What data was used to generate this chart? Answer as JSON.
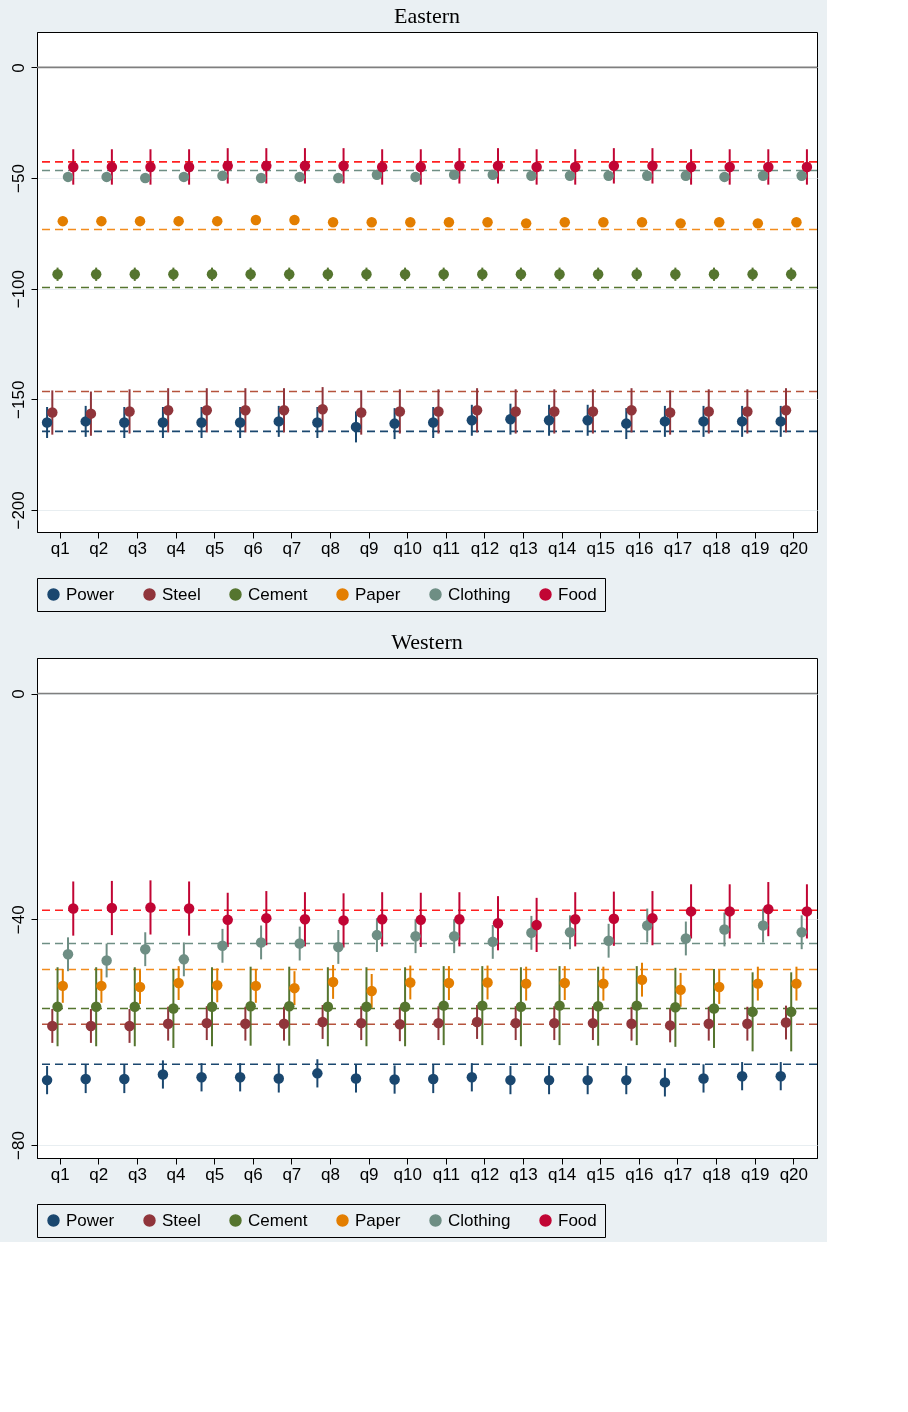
{
  "chart_data": [
    {
      "type": "scatter",
      "title": "Eastern",
      "categories": [
        "q1",
        "q2",
        "q3",
        "q4",
        "q5",
        "q6",
        "q7",
        "q8",
        "q9",
        "q10",
        "q11",
        "q12",
        "q13",
        "q14",
        "q15",
        "q16",
        "q17",
        "q18",
        "q19",
        "q20"
      ],
      "ylim": [
        -210,
        16
      ],
      "yticks": [
        0,
        -50,
        -100,
        -150,
        -200
      ],
      "grid": "y",
      "legend": "bottom",
      "marker": "circle",
      "series": [
        {
          "name": "Power",
          "color": "#1a476f",
          "values": [
            -160.5,
            -160,
            -160.5,
            -160.5,
            -160.5,
            -160.5,
            -160,
            -160.5,
            -162.5,
            -161,
            -160.5,
            -159.5,
            -159,
            -159.5,
            -159.5,
            -161,
            -160,
            -160,
            -160,
            -160
          ],
          "errors": [
            7,
            7,
            7,
            7,
            7,
            7,
            7,
            7,
            7,
            7,
            7,
            7,
            7,
            7,
            7,
            7,
            7,
            7,
            7,
            7
          ]
        },
        {
          "name": "Steel",
          "color": "#90353b",
          "values": [
            -156,
            -156.5,
            -155.5,
            -155,
            -155,
            -155,
            -155,
            -154.5,
            -156,
            -155.5,
            -155.5,
            -155,
            -155.5,
            -155.5,
            -155.5,
            -155,
            -156,
            -155.5,
            -155.5,
            -155
          ],
          "errors": [
            10,
            10,
            10,
            10,
            10,
            10,
            10,
            10,
            10,
            10,
            10,
            10,
            10,
            10,
            10,
            10,
            10,
            10,
            10,
            10
          ]
        },
        {
          "name": "Cement",
          "color": "#55752f",
          "values": [
            -93.5,
            -93.5,
            -93.5,
            -93.5,
            -93.5,
            -93.5,
            -93.5,
            -93.5,
            -93.5,
            -93.5,
            -93.5,
            -93.5,
            -93.5,
            -93.5,
            -93.5,
            -93.5,
            -93.5,
            -93.5,
            -93.5,
            -93.5
          ],
          "errors": [
            3,
            3,
            3,
            3,
            3,
            3,
            3,
            3,
            3,
            3,
            3,
            3,
            3,
            3,
            3,
            3,
            3,
            3,
            3,
            3
          ]
        },
        {
          "name": "Paper",
          "color": "#e37e00",
          "values": [
            -69.5,
            -69.5,
            -69.5,
            -69.5,
            -69.5,
            -69,
            -69,
            -70,
            -70,
            -70,
            -70,
            -70,
            -70.5,
            -70,
            -70,
            -70,
            -70.5,
            -70,
            -70.5,
            -70
          ],
          "errors": [
            2,
            2,
            2,
            2,
            2,
            2,
            2,
            2,
            2,
            2,
            2,
            2,
            2,
            2,
            2,
            2,
            2,
            2,
            2,
            2
          ]
        },
        {
          "name": "Clothing",
          "color": "#6e8e84",
          "values": [
            -49.5,
            -49.5,
            -50,
            -49.5,
            -49,
            -50,
            -49.5,
            -50,
            -48.5,
            -49.5,
            -48.5,
            -48.5,
            -49,
            -49,
            -49,
            -49,
            -49,
            -49.5,
            -49,
            -49
          ],
          "errors": [
            2,
            2,
            2,
            2,
            2,
            2,
            2,
            2,
            2,
            2,
            2,
            2,
            2,
            2,
            2,
            2,
            2,
            2,
            2,
            2
          ]
        },
        {
          "name": "Food",
          "color": "#c10534",
          "values": [
            -45,
            -45,
            -45,
            -45,
            -44.5,
            -44.5,
            -44.5,
            -44.5,
            -45,
            -45,
            -44.5,
            -44.5,
            -45,
            -45,
            -44.5,
            -44.5,
            -45,
            -45,
            -45,
            -45
          ],
          "errors": [
            8,
            8,
            8,
            8,
            8,
            8,
            8,
            8,
            8,
            8,
            8,
            8,
            8,
            8,
            8,
            8,
            8,
            8,
            8,
            8
          ]
        }
      ],
      "ref_lines": [
        {
          "axis": "y",
          "value": 0,
          "color": "#7f7f7f",
          "line_style": "solid"
        },
        {
          "axis": "y",
          "value": -42.7,
          "color": "#ff2020",
          "line_style": "dashed"
        },
        {
          "axis": "y",
          "value": -46.6,
          "color": "#6e8e84",
          "line_style": "dashed"
        },
        {
          "axis": "y",
          "value": -73.3,
          "color": "#f28c1e",
          "line_style": "dashed"
        },
        {
          "axis": "y",
          "value": -99.5,
          "color": "#55752f",
          "line_style": "dashed"
        },
        {
          "axis": "y",
          "value": -146.5,
          "color": "#b5533c",
          "line_style": "dashed"
        },
        {
          "axis": "y",
          "value": -164.5,
          "color": "#1a476f",
          "line_style": "dashed"
        }
      ]
    },
    {
      "type": "scatter",
      "title": "Western",
      "categories": [
        "q1",
        "q2",
        "q3",
        "q4",
        "q5",
        "q6",
        "q7",
        "q8",
        "q9",
        "q10",
        "q11",
        "q12",
        "q13",
        "q14",
        "q15",
        "q16",
        "q17",
        "q18",
        "q19",
        "q20"
      ],
      "ylim": [
        -82.3,
        6.3
      ],
      "yticks": [
        0,
        -40,
        -80
      ],
      "grid": "y",
      "legend": "bottom",
      "marker": "circle",
      "series": [
        {
          "name": "Power",
          "color": "#1a476f",
          "values": [
            -68.5,
            -68.3,
            -68.3,
            -67.5,
            -68,
            -68,
            -68.2,
            -67.3,
            -68.2,
            -68.4,
            -68.3,
            -68,
            -68.5,
            -68.5,
            -68.5,
            -68.5,
            -68.9,
            -68.2,
            -67.8,
            -67.8
          ],
          "errors": [
            2.5,
            2.5,
            2.5,
            2.5,
            2.5,
            2.5,
            2.5,
            2.5,
            2.5,
            2.5,
            2.5,
            2.5,
            2.5,
            2.5,
            2.5,
            2.5,
            2.5,
            2.5,
            2.5,
            2.5
          ]
        },
        {
          "name": "Steel",
          "color": "#90353b",
          "values": [
            -58.9,
            -58.9,
            -58.9,
            -58.5,
            -58.4,
            -58.5,
            -58.5,
            -58.2,
            -58.4,
            -58.6,
            -58.4,
            -58.2,
            -58.4,
            -58.4,
            -58.4,
            -58.5,
            -58.8,
            -58.5,
            -58.5,
            -58.3
          ],
          "errors": [
            3,
            3,
            3,
            3,
            3,
            3,
            3,
            3,
            3,
            3,
            3,
            3,
            3,
            3,
            3,
            3,
            3,
            3,
            3,
            3
          ]
        },
        {
          "name": "Cement",
          "color": "#55752f",
          "values": [
            -55.5,
            -55.5,
            -55.5,
            -55.8,
            -55.5,
            -55.4,
            -55.4,
            -55.5,
            -55.5,
            -55.5,
            -55.3,
            -55.3,
            -55.5,
            -55.3,
            -55.4,
            -55.3,
            -55.6,
            -55.8,
            -56.4,
            -56.4
          ],
          "errors": [
            7,
            7,
            7,
            7,
            7,
            7,
            7,
            7,
            7,
            7,
            7,
            7,
            7,
            7,
            7,
            7,
            7,
            7,
            7,
            7
          ]
        },
        {
          "name": "Paper",
          "color": "#e37e00",
          "values": [
            -51.8,
            -51.8,
            -52,
            -51.3,
            -51.7,
            -51.8,
            -52.2,
            -51.1,
            -52.7,
            -51.2,
            -51.3,
            -51.2,
            -51.4,
            -51.3,
            -51.4,
            -50.7,
            -52.5,
            -52,
            -51.4,
            -51.4
          ],
          "errors": [
            3,
            3,
            3,
            3,
            3,
            3,
            3,
            3,
            3,
            3,
            3,
            3,
            3,
            3,
            3,
            3,
            3,
            3,
            3,
            3
          ]
        },
        {
          "name": "Clothing",
          "color": "#6e8e84",
          "values": [
            -46.2,
            -47.3,
            -45.3,
            -47.1,
            -44.7,
            -44.1,
            -44.3,
            -44.9,
            -42.8,
            -43,
            -43,
            -44,
            -42.4,
            -42.3,
            -43.8,
            -41.1,
            -43.4,
            -41.8,
            -41.1,
            -42.3
          ],
          "errors": [
            3,
            3,
            3,
            3,
            3,
            3,
            3,
            3,
            3,
            3,
            3,
            3,
            3,
            3,
            3,
            3,
            3,
            3,
            3,
            3
          ]
        },
        {
          "name": "Food",
          "color": "#c10534",
          "values": [
            -38.1,
            -38,
            -37.9,
            -38.1,
            -40.1,
            -39.8,
            -40,
            -40.2,
            -40,
            -40.1,
            -40,
            -40.7,
            -41,
            -40,
            -39.9,
            -39.8,
            -38.6,
            -38.6,
            -38.2,
            -38.6
          ],
          "errors": [
            4.8,
            4.8,
            4.8,
            4.8,
            4.8,
            4.8,
            4.8,
            4.8,
            4.8,
            4.8,
            4.8,
            4.8,
            4.8,
            4.8,
            4.8,
            4.8,
            4.8,
            4.8,
            4.8,
            4.8
          ]
        }
      ],
      "ref_lines": [
        {
          "axis": "y",
          "value": 0,
          "color": "#7f7f7f",
          "line_style": "solid"
        },
        {
          "axis": "y",
          "value": -38.4,
          "color": "#ff2020",
          "line_style": "dashed"
        },
        {
          "axis": "y",
          "value": -44.3,
          "color": "#6e8e84",
          "line_style": "dashed"
        },
        {
          "axis": "y",
          "value": -48.9,
          "color": "#f28c1e",
          "line_style": "dashed"
        },
        {
          "axis": "y",
          "value": -55.8,
          "color": "#55752f",
          "line_style": "dashed"
        },
        {
          "axis": "y",
          "value": -58.6,
          "color": "#b5533c",
          "line_style": "dashed"
        },
        {
          "axis": "y",
          "value": -65.7,
          "color": "#1a476f",
          "line_style": "dashed"
        }
      ]
    }
  ]
}
